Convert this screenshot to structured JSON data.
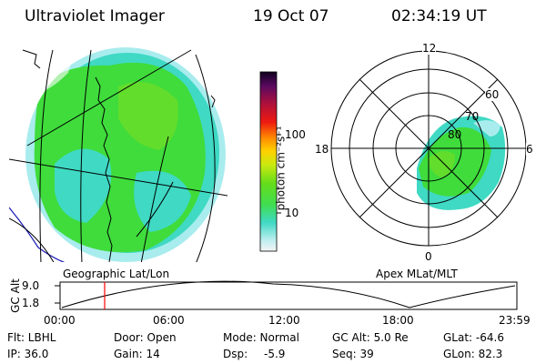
{
  "header": {
    "instrument": "Ultraviolet Imager",
    "date": "19 Oct 07",
    "time": "02:34:19 UT"
  },
  "colorbar": {
    "unit_label": "photon cm⁻²s⁻¹",
    "ticks": [
      "100",
      "10"
    ]
  },
  "left_panel": {
    "caption": "Geographic Lat/Lon"
  },
  "right_panel": {
    "caption": "Apex MLat/MLT",
    "mlt_labels": {
      "top": "12",
      "left": "18",
      "right": "6",
      "bottom": "0"
    },
    "mlat_labels": [
      "60",
      "70",
      "80"
    ]
  },
  "altitude_plot": {
    "ylabel": "GC Alt",
    "yticks": [
      "9.0",
      "1.8"
    ],
    "xticks": [
      "00:00",
      "06:00",
      "12:00",
      "18:00",
      "23:59"
    ],
    "marker_color": "#ff0000"
  },
  "footer": {
    "flt": "Flt: LBHL",
    "door": "Door: Open",
    "mode": "Mode: Normal",
    "gc_alt": "GC Alt: 5.0 Re",
    "glat": "GLat: -64.6",
    "ip": "IP: 36.0",
    "gain": "Gain: 14",
    "dsp_label": "Dsp:",
    "dsp_value": "-5.9",
    "seq": "Seq: 39",
    "glon": "GLon: 82.3"
  },
  "colors": {
    "green": "#3fdc3c",
    "cyan": "#3fd9c4",
    "light_cyan": "#a8ecee",
    "coast": "#000000",
    "limb": "#1a1ab8"
  }
}
